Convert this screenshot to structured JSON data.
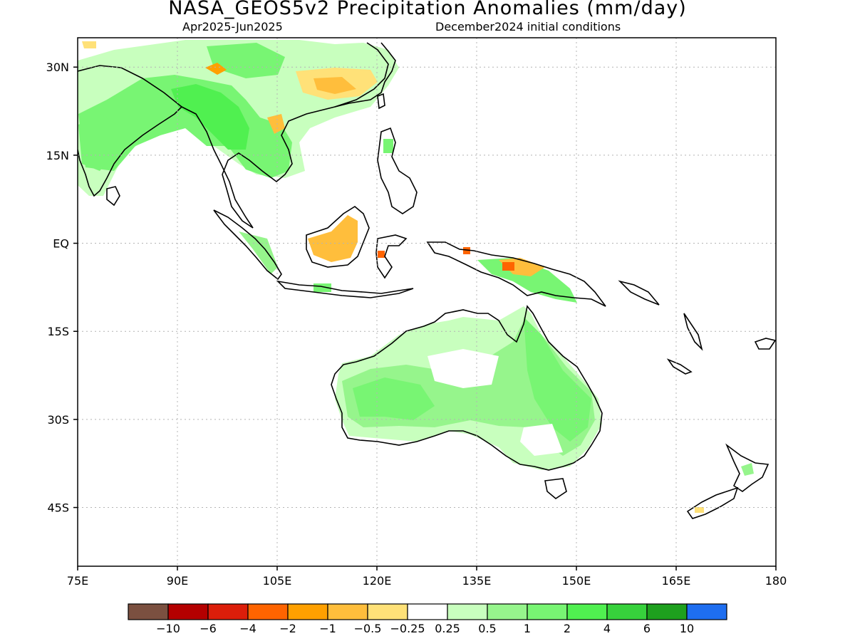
{
  "title": "NASA_GEOS5v2 Precipitation Anomalies (mm/day)",
  "subtitle_left": "Apr2025-Jun2025",
  "subtitle_right": "December2024 initial conditions",
  "map": {
    "lon_range": [
      75,
      180
    ],
    "lat_range": [
      -55,
      35
    ],
    "lon_ticks": [
      {
        "value": 75,
        "label": "75E"
      },
      {
        "value": 90,
        "label": "90E"
      },
      {
        "value": 105,
        "label": "105E"
      },
      {
        "value": 120,
        "label": "120E"
      },
      {
        "value": 135,
        "label": "135E"
      },
      {
        "value": 150,
        "label": "150E"
      },
      {
        "value": 165,
        "label": "165E"
      },
      {
        "value": 180,
        "label": "180"
      }
    ],
    "lat_ticks": [
      {
        "value": 30,
        "label": "30N"
      },
      {
        "value": 15,
        "label": "15N"
      },
      {
        "value": 0,
        "label": "EQ"
      },
      {
        "value": -15,
        "label": "15S"
      },
      {
        "value": -30,
        "label": "30S"
      },
      {
        "value": -45,
        "label": "45S"
      }
    ],
    "grid": "dotted"
  },
  "colorbar": {
    "colors": [
      "#7b5040",
      "#b40000",
      "#dc1e0a",
      "#ff6400",
      "#ffa000",
      "#ffbe3c",
      "#ffe178",
      "#ffffff",
      "#c8ffbe",
      "#96f58c",
      "#78f573",
      "#50f050",
      "#37d23c",
      "#1ea01e",
      "#1e6ef0"
    ],
    "labels": [
      "-10",
      "-6",
      "-4",
      "-2",
      "-1",
      "-0.5",
      "-0.25",
      "0.25",
      "0.5",
      "1",
      "2",
      "4",
      "6",
      "10"
    ]
  }
}
